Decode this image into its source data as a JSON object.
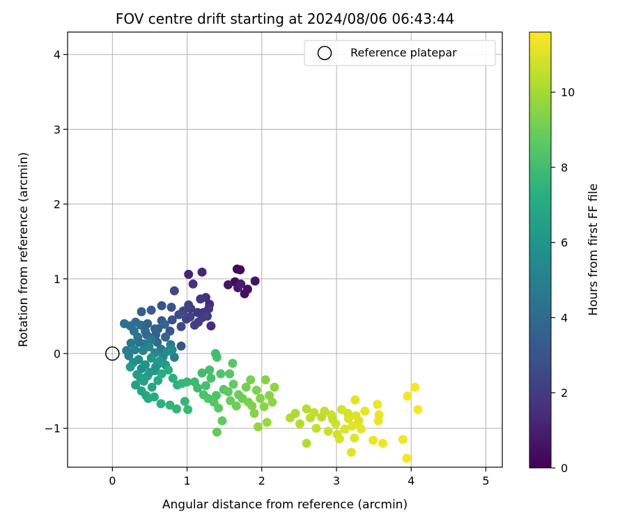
{
  "chart_data": {
    "type": "scatter",
    "title": "FOV centre drift starting at 2024/08/06 06:43:44",
    "xlabel": "Angular distance from reference (arcmin)",
    "ylabel": "Rotation from reference (arcmin)",
    "xlim": [
      -0.6,
      5.22
    ],
    "ylim": [
      -1.52,
      4.3
    ],
    "xticks": [
      "0",
      "1",
      "2",
      "3",
      "4",
      "5"
    ],
    "yticks": [
      "−1",
      "0",
      "1",
      "2",
      "3",
      "4"
    ],
    "grid": true,
    "legend": {
      "placement": "top-right",
      "entries": [
        "Reference platepar"
      ]
    },
    "reference_point": {
      "x": 0,
      "y": 0
    },
    "colorbar": {
      "label": "Hours from first FF file",
      "range": [
        0,
        11.6
      ],
      "ticks": [
        "0",
        "2",
        "4",
        "6",
        "8",
        "10"
      ],
      "colormap": "viridis"
    },
    "points": [
      [
        1.67,
        1.13,
        0.1
      ],
      [
        1.71,
        1.12,
        0.2
      ],
      [
        1.64,
        0.96,
        0.3
      ],
      [
        1.77,
        0.8,
        0.4
      ],
      [
        1.81,
        0.86,
        0.5
      ],
      [
        1.91,
        0.97,
        0.6
      ],
      [
        1.55,
        0.92,
        0.7
      ],
      [
        1.68,
        0.88,
        0.8
      ],
      [
        1.72,
        0.93,
        0.9
      ],
      [
        1.02,
        1.06,
        1.2
      ],
      [
        1.2,
        1.09,
        1.3
      ],
      [
        1.3,
        0.66,
        1.4
      ],
      [
        1.32,
        0.37,
        1.5
      ],
      [
        1.25,
        0.75,
        1.6
      ],
      [
        1.08,
        0.93,
        1.7
      ],
      [
        1.22,
        0.55,
        1.8
      ],
      [
        1.14,
        0.55,
        1.9
      ],
      [
        1.2,
        0.48,
        2.0
      ],
      [
        1.05,
        0.6,
        2.0
      ],
      [
        1.27,
        0.5,
        2.1
      ],
      [
        1.1,
        0.38,
        2.2
      ],
      [
        0.95,
        0.57,
        2.3
      ],
      [
        0.99,
        0.46,
        2.4
      ],
      [
        0.92,
        0.36,
        2.5
      ],
      [
        0.83,
        0.84,
        2.6
      ],
      [
        0.89,
        0.52,
        2.7
      ],
      [
        0.8,
        0.45,
        2.8
      ],
      [
        0.77,
        0.3,
        2.9
      ],
      [
        0.66,
        0.64,
        3.0
      ],
      [
        0.79,
        0.62,
        3.1
      ],
      [
        1.02,
        0.65,
        2.3
      ],
      [
        1.18,
        0.73,
        1.9
      ],
      [
        1.29,
        0.6,
        1.8
      ],
      [
        1.15,
        0.42,
        2.1
      ],
      [
        1.04,
        0.49,
        2.2
      ],
      [
        0.66,
        0.44,
        3.2
      ],
      [
        0.61,
        0.33,
        3.3
      ],
      [
        0.52,
        0.58,
        3.4
      ],
      [
        0.39,
        0.56,
        3.5
      ],
      [
        0.47,
        0.4,
        3.6
      ],
      [
        0.58,
        0.25,
        3.6
      ],
      [
        0.7,
        0.39,
        3.7
      ],
      [
        0.71,
        0.22,
        3.8
      ],
      [
        0.6,
        0.15,
        3.9
      ],
      [
        0.46,
        0.25,
        4.0
      ],
      [
        0.38,
        0.38,
        4.1
      ],
      [
        0.31,
        0.42,
        4.2
      ],
      [
        0.24,
        0.37,
        4.3
      ],
      [
        0.16,
        0.4,
        4.3
      ],
      [
        0.29,
        0.3,
        4.4
      ],
      [
        0.34,
        0.22,
        4.5
      ],
      [
        0.43,
        0.13,
        4.6
      ],
      [
        0.52,
        0.19,
        4.6
      ],
      [
        0.65,
        0.06,
        4.7
      ],
      [
        0.78,
        0.12,
        4.8
      ],
      [
        0.83,
        -0.05,
        4.9
      ],
      [
        0.57,
        0.33,
        3.7
      ],
      [
        0.44,
        0.3,
        4.0
      ],
      [
        0.36,
        0.15,
        4.4
      ],
      [
        0.25,
        0.14,
        4.6
      ],
      [
        0.19,
        0.04,
        4.8
      ],
      [
        0.22,
        -0.03,
        5.0
      ],
      [
        0.3,
        0.05,
        5.0
      ],
      [
        0.41,
        0.04,
        5.1
      ],
      [
        0.49,
        0.09,
        5.2
      ],
      [
        0.57,
        0.01,
        5.3
      ],
      [
        0.68,
        -0.04,
        5.4
      ],
      [
        0.74,
        0.03,
        5.5
      ],
      [
        0.8,
        0.05,
        5.6
      ],
      [
        0.35,
        -0.08,
        5.6
      ],
      [
        0.28,
        -0.12,
        5.7
      ],
      [
        0.39,
        -0.2,
        5.8
      ],
      [
        0.44,
        -0.15,
        5.9
      ],
      [
        0.52,
        -0.06,
        6.0
      ],
      [
        0.63,
        -0.1,
        6.1
      ],
      [
        0.71,
        -0.15,
        6.2
      ],
      [
        0.57,
        -0.23,
        6.3
      ],
      [
        0.47,
        -0.3,
        6.4
      ],
      [
        0.37,
        -0.32,
        6.5
      ],
      [
        0.31,
        -0.42,
        6.6
      ],
      [
        0.39,
        -0.5,
        6.7
      ],
      [
        0.45,
        -0.56,
        6.8
      ],
      [
        0.53,
        -0.45,
        6.9
      ],
      [
        0.61,
        -0.36,
        7.0
      ],
      [
        0.66,
        -0.27,
        7.1
      ],
      [
        0.75,
        -0.22,
        7.2
      ],
      [
        0.81,
        -0.33,
        7.3
      ],
      [
        0.87,
        -0.42,
        7.4
      ],
      [
        0.42,
        -0.37,
        6.6
      ],
      [
        0.5,
        -0.25,
        6.3
      ],
      [
        0.6,
        -0.15,
        6.2
      ],
      [
        0.33,
        -0.28,
        6.4
      ],
      [
        0.24,
        -0.18,
        6.3
      ],
      [
        0.48,
        -0.6,
        7.0
      ],
      [
        0.56,
        -0.58,
        7.1
      ],
      [
        0.65,
        -0.67,
        7.3
      ],
      [
        0.77,
        -0.69,
        7.5
      ],
      [
        0.86,
        -0.74,
        7.6
      ],
      [
        0.97,
        -0.64,
        7.7
      ],
      [
        1.01,
        -0.75,
        7.8
      ],
      [
        0.93,
        -0.4,
        7.6
      ],
      [
        1.0,
        -0.38,
        7.7
      ],
      [
        1.1,
        -0.38,
        7.8
      ],
      [
        1.14,
        -0.46,
        7.9
      ],
      [
        1.2,
        -0.26,
        8.0
      ],
      [
        1.25,
        -0.43,
        8.1
      ],
      [
        1.32,
        -0.33,
        8.2
      ],
      [
        1.39,
        -0.56,
        8.3
      ],
      [
        1.45,
        -0.27,
        8.4
      ],
      [
        1.49,
        -0.48,
        8.5
      ],
      [
        1.36,
        -0.65,
        8.5
      ],
      [
        1.28,
        -0.6,
        8.4
      ],
      [
        1.22,
        -0.55,
        8.3
      ],
      [
        1.42,
        -0.73,
        8.6
      ],
      [
        1.55,
        -0.51,
        8.7
      ],
      [
        1.57,
        -0.27,
        8.5
      ],
      [
        1.62,
        -0.41,
        8.8
      ],
      [
        1.69,
        -0.55,
        8.9
      ],
      [
        1.66,
        -0.7,
        9.0
      ],
      [
        1.58,
        -0.63,
        8.9
      ],
      [
        1.74,
        -0.6,
        9.0
      ],
      [
        1.79,
        -0.45,
        9.1
      ],
      [
        1.82,
        -0.65,
        9.2
      ],
      [
        1.87,
        -0.7,
        9.3
      ],
      [
        1.9,
        -0.8,
        9.4
      ],
      [
        1.85,
        -0.35,
        9.2
      ],
      [
        1.93,
        -0.49,
        9.3
      ],
      [
        1.98,
        -0.6,
        9.4
      ],
      [
        2.03,
        -0.71,
        9.5
      ],
      [
        2.05,
        -0.35,
        9.4
      ],
      [
        2.1,
        -0.56,
        9.5
      ],
      [
        2.14,
        -0.65,
        9.6
      ],
      [
        2.17,
        -0.45,
        9.6
      ],
      [
        1.95,
        -0.98,
        9.7
      ],
      [
        2.07,
        -0.92,
        9.8
      ],
      [
        1.4,
        -0.05,
        8.2
      ],
      [
        1.3,
        -0.22,
        8.1
      ],
      [
        1.61,
        -0.13,
        8.6
      ],
      [
        1.38,
        0.0,
        8.0
      ],
      [
        1.47,
        -0.9,
        8.7
      ],
      [
        1.4,
        -1.05,
        8.8
      ],
      [
        0.92,
        0.1,
        3.0
      ],
      [
        0.58,
        -0.18,
        6.0
      ],
      [
        2.38,
        -0.86,
        10.2
      ],
      [
        2.51,
        -0.94,
        10.3
      ],
      [
        2.6,
        -0.74,
        10.3
      ],
      [
        2.65,
        -0.86,
        10.4
      ],
      [
        2.7,
        -0.79,
        10.5
      ],
      [
        2.73,
        -1.0,
        10.5
      ],
      [
        2.84,
        -0.77,
        10.6
      ],
      [
        2.89,
        -1.04,
        10.7
      ],
      [
        2.93,
        -0.82,
        10.7
      ],
      [
        2.99,
        -0.94,
        10.8
      ],
      [
        3.01,
        -1.08,
        10.8
      ],
      [
        3.04,
        -1.14,
        10.9
      ],
      [
        3.07,
        -0.75,
        10.9
      ],
      [
        3.11,
        -1.01,
        11.0
      ],
      [
        3.16,
        -0.87,
        11.0
      ],
      [
        3.21,
        -0.97,
        11.1
      ],
      [
        3.24,
        -1.13,
        11.1
      ],
      [
        3.26,
        -0.83,
        11.1
      ],
      [
        3.29,
        -0.93,
        11.2
      ],
      [
        3.33,
        -1.01,
        11.2
      ],
      [
        3.38,
        -0.77,
        11.2
      ],
      [
        3.25,
        -0.62,
        11.1
      ],
      [
        3.2,
        -1.32,
        11.1
      ],
      [
        3.49,
        -1.16,
        11.3
      ],
      [
        3.55,
        -0.68,
        11.3
      ],
      [
        3.57,
        -0.82,
        11.3
      ],
      [
        3.56,
        -0.9,
        11.3
      ],
      [
        3.62,
        -1.2,
        11.4
      ],
      [
        3.89,
        -1.15,
        11.4
      ],
      [
        3.95,
        -0.57,
        11.5
      ],
      [
        4.05,
        -0.45,
        11.5
      ],
      [
        4.09,
        -0.75,
        11.5
      ],
      [
        3.94,
        -1.4,
        11.5
      ],
      [
        2.6,
        -1.2,
        10.2
      ],
      [
        2.8,
        -0.85,
        10.4
      ],
      [
        2.95,
        -0.88,
        10.6
      ],
      [
        3.3,
        -0.9,
        11.0
      ],
      [
        3.15,
        -0.8,
        10.9
      ],
      [
        2.45,
        -0.8,
        10.1
      ]
    ]
  }
}
